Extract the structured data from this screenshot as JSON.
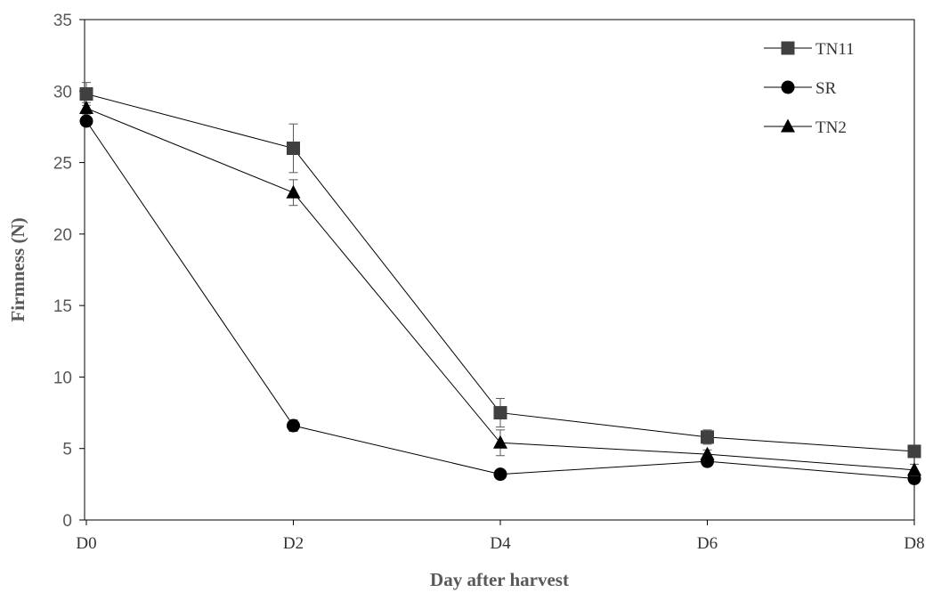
{
  "chart_data": {
    "type": "line",
    "title": "",
    "xlabel": "Day after harvest",
    "ylabel": "Firmness (N)",
    "categories": [
      "D0",
      "D2",
      "D4",
      "D6",
      "D8"
    ],
    "ylim": [
      0,
      35
    ],
    "yticks": [
      0,
      5,
      10,
      15,
      20,
      25,
      30,
      35
    ],
    "grid": false,
    "legend_position": "top-right",
    "series": [
      {
        "name": "TN11",
        "marker": "square",
        "color": "#404040",
        "values": [
          29.8,
          26.0,
          7.5,
          5.8,
          4.8
        ],
        "errors": [
          0.8,
          1.7,
          1.0,
          0.5,
          0.3
        ]
      },
      {
        "name": "SR",
        "marker": "circle",
        "color": "#000000",
        "values": [
          27.9,
          6.6,
          3.2,
          4.1,
          2.9
        ],
        "errors": [
          0.3,
          0.4,
          0.2,
          0.3,
          0.2
        ]
      },
      {
        "name": "TN2",
        "marker": "triangle",
        "color": "#000000",
        "values": [
          28.8,
          22.9,
          5.4,
          4.6,
          3.5
        ],
        "errors": [
          0.4,
          0.9,
          0.9,
          0.3,
          0.4
        ]
      }
    ]
  }
}
